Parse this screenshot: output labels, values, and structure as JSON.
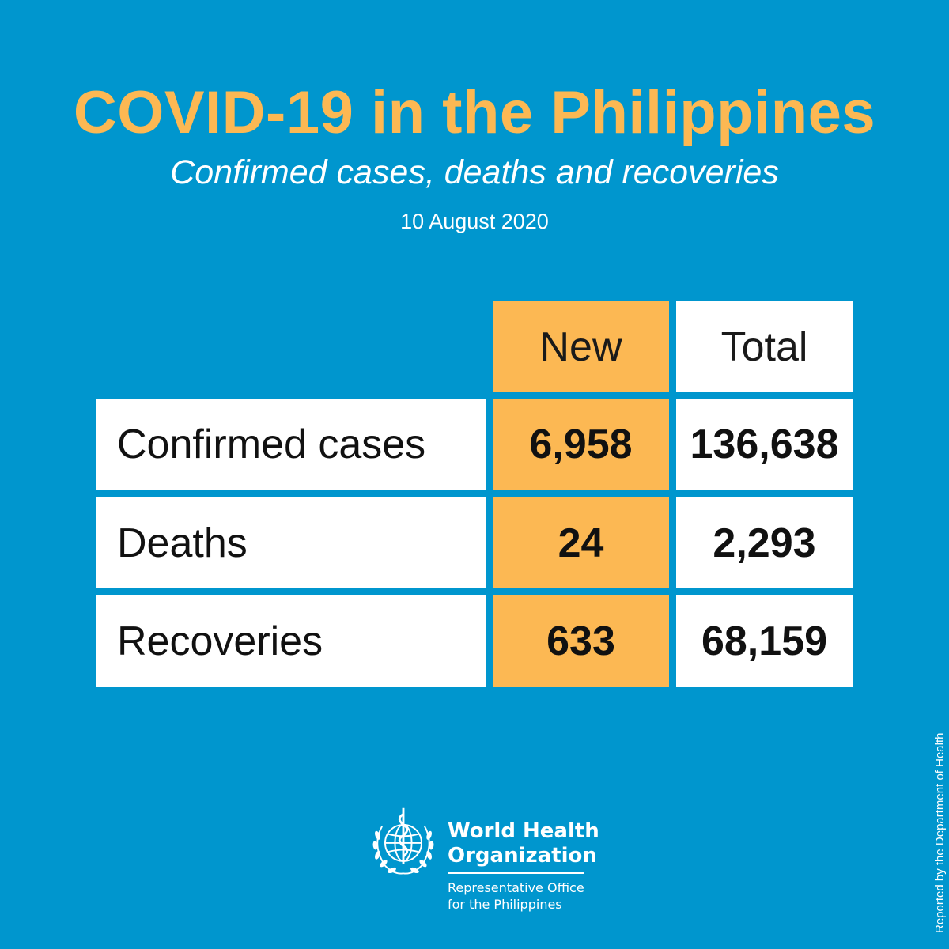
{
  "header": {
    "title": "COVID-19 in the Philippines",
    "subtitle": "Confirmed cases, deaths and recoveries",
    "date": "10 August 2020"
  },
  "table": {
    "columns": [
      "New",
      "Total"
    ],
    "rows": [
      {
        "label": "Confirmed cases",
        "new": "6,958",
        "total": "136,638"
      },
      {
        "label": "Deaths",
        "new": "24",
        "total": "2,293"
      },
      {
        "label": "Recoveries",
        "new": "633",
        "total": "68,159"
      }
    ]
  },
  "footer": {
    "org_line1": "World Health",
    "org_line2": "Organization",
    "office_line1": "Representative Office",
    "office_line2": "for the Philippines",
    "side_note": "Reported by the Department of Health"
  },
  "colors": {
    "background": "#0096ce",
    "accent": "#fcb853",
    "cell": "#ffffff",
    "text": "#111111"
  },
  "icons": [
    "who-emblem-icon"
  ]
}
